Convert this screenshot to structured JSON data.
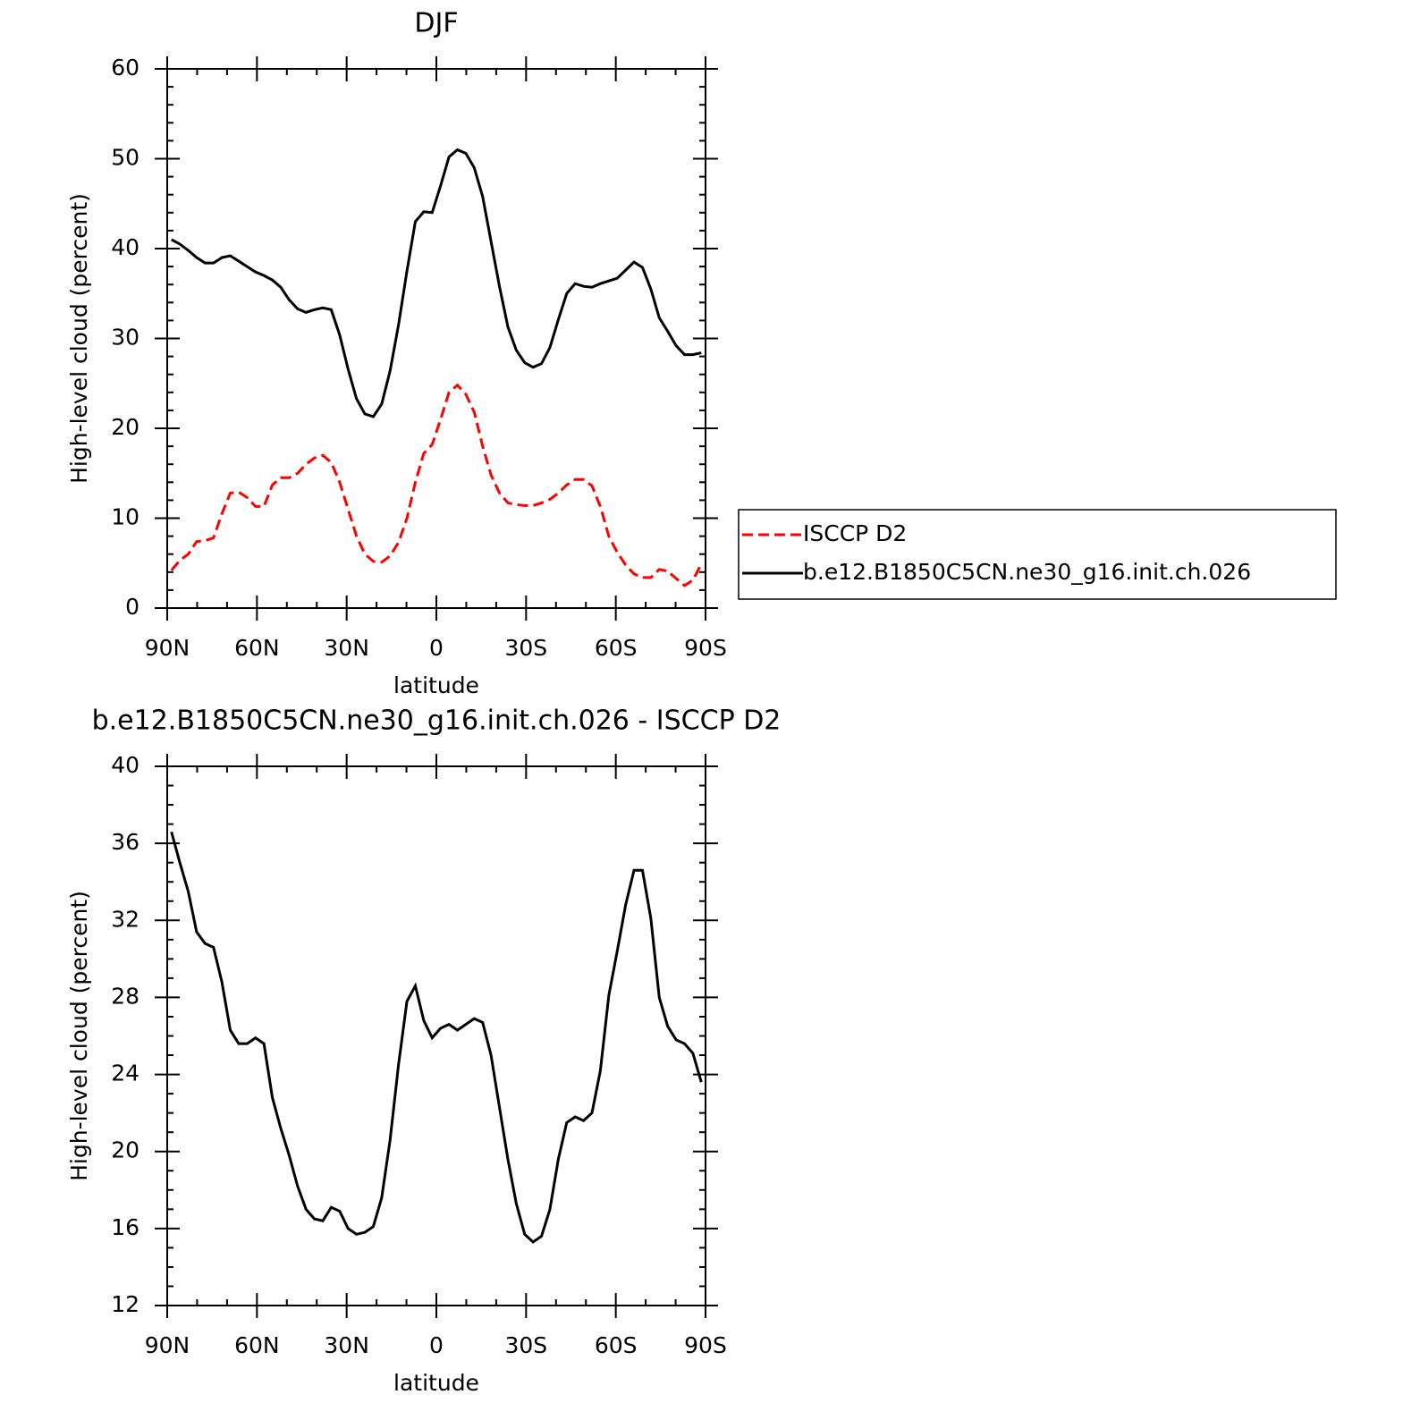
{
  "chart_data": [
    {
      "type": "line",
      "title": "DJF",
      "xlabel": "latitude",
      "ylabel": "High-level cloud (percent)",
      "x": [
        88.59,
        85.78,
        82.97,
        80.16,
        77.34,
        74.53,
        71.72,
        68.91,
        66.09,
        63.28,
        60.47,
        57.66,
        54.84,
        52.03,
        49.22,
        46.41,
        43.59,
        40.78,
        37.97,
        35.16,
        32.34,
        29.53,
        26.72,
        23.91,
        21.09,
        18.28,
        15.47,
        12.66,
        9.84,
        7.03,
        4.22,
        1.41,
        -1.41,
        -4.22,
        -7.03,
        -9.84,
        -12.66,
        -15.47,
        -18.28,
        -21.09,
        -23.91,
        -26.72,
        -29.53,
        -32.34,
        -35.16,
        -37.97,
        -40.78,
        -43.59,
        -46.41,
        -49.22,
        -52.03,
        -54.84,
        -57.66,
        -60.47,
        -63.28,
        -66.09,
        -68.91,
        -71.72,
        -74.53,
        -77.34,
        -80.16,
        -82.97,
        -85.78,
        -88.59
      ],
      "series": [
        {
          "name": "ISCCP D2",
          "color": "#ff0000",
          "line_style": "dashed",
          "values": [
            4.2,
            5.3,
            6.0,
            7.4,
            7.5,
            7.8,
            10.5,
            12.8,
            12.9,
            12.3,
            11.3,
            11.3,
            13.7,
            14.5,
            14.5,
            15.0,
            16.0,
            16.7,
            17.0,
            16.2,
            14.0,
            11.0,
            8.0,
            6.0,
            5.2,
            5.1,
            5.8,
            7.3,
            10.0,
            14.0,
            17.2,
            18.2,
            21.0,
            24.0,
            24.8,
            23.8,
            21.8,
            18.0,
            14.8,
            12.8,
            11.7,
            11.5,
            11.4,
            11.4,
            11.7,
            12.1,
            12.8,
            13.7,
            14.3,
            14.3,
            13.6,
            11.3,
            8.0,
            6.2,
            4.8,
            3.8,
            3.4,
            3.4,
            4.3,
            4.1,
            3.3,
            2.5,
            3.1,
            4.9
          ]
        },
        {
          "name": "b.e12.B1850C5CN.ne30_g16.init.ch.026",
          "color": "#000000",
          "line_style": "solid",
          "values": [
            41.0,
            40.5,
            39.8,
            39.0,
            38.4,
            38.4,
            39.0,
            39.2,
            38.6,
            38.0,
            37.4,
            37.0,
            36.5,
            35.7,
            34.3,
            33.3,
            32.9,
            33.2,
            33.4,
            33.2,
            30.4,
            26.6,
            23.3,
            21.6,
            21.3,
            22.7,
            26.4,
            31.5,
            37.5,
            43.0,
            44.1,
            44.0,
            47.0,
            50.2,
            51.0,
            50.6,
            49.0,
            45.8,
            40.8,
            35.8,
            31.3,
            28.7,
            27.3,
            26.8,
            27.2,
            29.0,
            32.1,
            35.0,
            36.1,
            35.8,
            35.7,
            36.1,
            36.4,
            36.7,
            37.6,
            38.5,
            37.9,
            35.5,
            32.3,
            30.8,
            29.2,
            28.2,
            28.2,
            28.4
          ]
        }
      ],
      "xlim": [
        90,
        -90
      ],
      "xticks": [
        {
          "value": 90,
          "label": "90N"
        },
        {
          "value": 60,
          "label": "60N"
        },
        {
          "value": 30,
          "label": "30N"
        },
        0,
        {
          "value": -30,
          "label": "30S"
        },
        {
          "value": -60,
          "label": "60S"
        },
        {
          "value": -90,
          "label": "90S"
        }
      ],
      "xminorticks": [
        80,
        70,
        50,
        40,
        20,
        10,
        -10,
        -20,
        -40,
        -50,
        -70,
        -80
      ],
      "ylim": [
        0,
        60
      ],
      "yticks": [
        0,
        10,
        20,
        30,
        40,
        50,
        60
      ],
      "yminorticks": [
        2,
        4,
        6,
        8,
        12,
        14,
        16,
        18,
        22,
        24,
        26,
        28,
        32,
        34,
        36,
        38,
        42,
        44,
        46,
        48,
        52,
        54,
        56,
        58
      ],
      "legend": "outside right"
    },
    {
      "type": "line",
      "title": "b.e12.B1850C5CN.ne30_g16.init.ch.026 - ISCCP D2",
      "xlabel": "latitude",
      "ylabel": "High-level cloud (percent)",
      "x": [
        88.59,
        85.78,
        82.97,
        80.16,
        77.34,
        74.53,
        71.72,
        68.91,
        66.09,
        63.28,
        60.47,
        57.66,
        54.84,
        52.03,
        49.22,
        46.41,
        43.59,
        40.78,
        37.97,
        35.16,
        32.34,
        29.53,
        26.72,
        23.91,
        21.09,
        18.28,
        15.47,
        12.66,
        9.84,
        7.03,
        4.22,
        1.41,
        -1.41,
        -4.22,
        -7.03,
        -9.84,
        -12.66,
        -15.47,
        -18.28,
        -21.09,
        -23.91,
        -26.72,
        -29.53,
        -32.34,
        -35.16,
        -37.97,
        -40.78,
        -43.59,
        -46.41,
        -49.22,
        -52.03,
        -54.84,
        -57.66,
        -60.47,
        -63.28,
        -66.09,
        -68.91,
        -71.72,
        -74.53,
        -77.34,
        -80.16,
        -82.97,
        -85.78,
        -88.59
      ],
      "series": [
        {
          "color": "#000000",
          "line_style": "solid",
          "values": [
            36.6,
            35.0,
            33.5,
            31.4,
            30.8,
            30.6,
            28.8,
            26.3,
            25.6,
            25.6,
            25.9,
            25.6,
            22.8,
            21.2,
            19.8,
            18.2,
            17.0,
            16.5,
            16.4,
            17.1,
            16.9,
            16.0,
            15.7,
            15.8,
            16.1,
            17.6,
            20.6,
            24.5,
            27.8,
            28.6,
            26.8,
            25.9,
            26.4,
            26.6,
            26.3,
            26.6,
            26.9,
            26.7,
            25.0,
            22.3,
            19.6,
            17.3,
            15.7,
            15.3,
            15.6,
            17.0,
            19.6,
            21.5,
            21.8,
            21.6,
            22.0,
            24.2,
            28.1,
            30.4,
            32.8,
            34.6,
            34.6,
            32.1,
            28.0,
            26.5,
            25.8,
            25.6,
            25.1,
            23.6
          ]
        }
      ],
      "xlim": [
        90,
        -90
      ],
      "xticks": [
        {
          "value": 90,
          "label": "90N"
        },
        {
          "value": 60,
          "label": "60N"
        },
        {
          "value": 30,
          "label": "30N"
        },
        0,
        {
          "value": -30,
          "label": "30S"
        },
        {
          "value": -60,
          "label": "60S"
        },
        {
          "value": -90,
          "label": "90S"
        }
      ],
      "xminorticks": [
        80,
        70,
        50,
        40,
        20,
        10,
        -10,
        -20,
        -40,
        -50,
        -70,
        -80
      ],
      "ylim": [
        12,
        40
      ],
      "yticks": [
        12,
        16,
        20,
        24,
        28,
        32,
        36,
        40
      ],
      "yminorticks": [
        13,
        14,
        15,
        17,
        18,
        19,
        21,
        22,
        23,
        25,
        26,
        27,
        29,
        30,
        31,
        33,
        34,
        35,
        37,
        38,
        39
      ]
    }
  ]
}
